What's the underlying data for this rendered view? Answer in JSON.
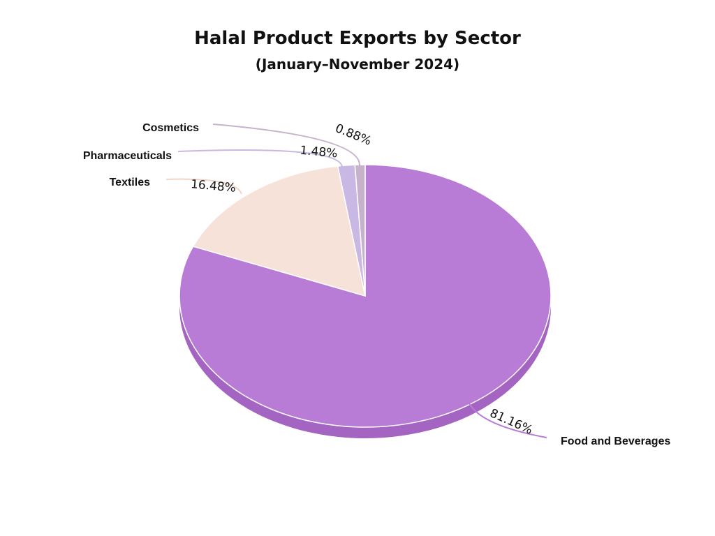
{
  "chart_data": {
    "type": "pie",
    "title": "Halal Product Exports by Sector",
    "subtitle": "(January–November 2024)",
    "slices": [
      {
        "label": "Food and Beverages",
        "value": 81.16,
        "value_label": "81.16%",
        "color": "#b87bd6"
      },
      {
        "label": "Textiles",
        "value": 16.48,
        "value_label": "16.48%",
        "color": "#f7e2d9"
      },
      {
        "label": "Pharmaceuticals",
        "value": 1.48,
        "value_label": "1.48%",
        "color": "#c8b8e3"
      },
      {
        "label": "Cosmetics",
        "value": 0.88,
        "value_label": "0.88%",
        "color": "#c7b2cc"
      }
    ],
    "legend": "none",
    "depth_color": "#a464c2"
  }
}
